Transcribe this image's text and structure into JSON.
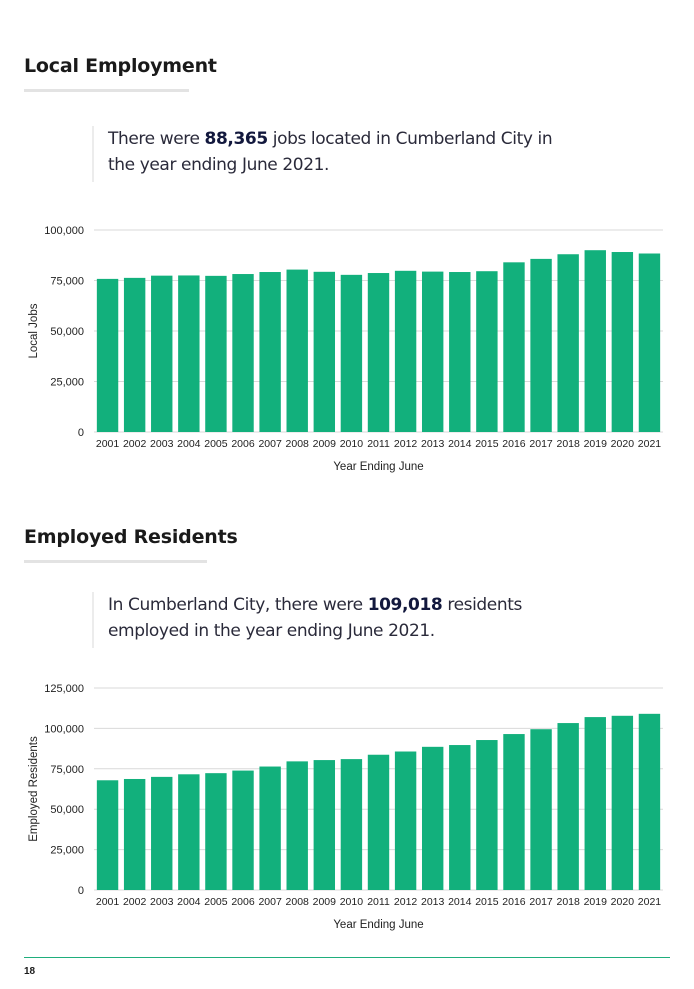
{
  "sections": [
    {
      "title": "Local Employment",
      "callout": {
        "before": "There were ",
        "highlight": "88,365",
        "after_line1": " jobs located in Cumberland City in",
        "line2": "the year ending June 2021."
      }
    },
    {
      "title": "Employed Residents",
      "callout": {
        "before": "In Cumberland City, there were ",
        "highlight": "109,018",
        "after_line1": " residents",
        "line2": "employed in the year ending June 2021."
      }
    }
  ],
  "page_number": "18",
  "colors": {
    "bar": "#12b07c",
    "grid": "#d9d9d9",
    "footer_rule": "#1fae7c"
  },
  "chart_data": [
    {
      "type": "bar",
      "title": "",
      "xlabel": "Year Ending June",
      "ylabel": "Local Jobs",
      "ylim": [
        0,
        100000
      ],
      "yticks": [
        0,
        25000,
        50000,
        75000,
        100000
      ],
      "ytick_labels": [
        "0",
        "25,000",
        "50,000",
        "75,000",
        "100,000"
      ],
      "grid": true,
      "categories": [
        "2001",
        "2002",
        "2003",
        "2004",
        "2005",
        "2006",
        "2007",
        "2008",
        "2009",
        "2010",
        "2011",
        "2012",
        "2013",
        "2014",
        "2015",
        "2016",
        "2017",
        "2018",
        "2019",
        "2020",
        "2021"
      ],
      "values": [
        75800,
        76300,
        77400,
        77500,
        77300,
        78200,
        79200,
        80400,
        79300,
        77800,
        78700,
        79800,
        79400,
        79200,
        79600,
        84000,
        85700,
        88000,
        90000,
        89100,
        88365
      ]
    },
    {
      "type": "bar",
      "title": "",
      "xlabel": "Year Ending June",
      "ylabel": "Employed Residents",
      "ylim": [
        0,
        125000
      ],
      "yticks": [
        0,
        25000,
        50000,
        75000,
        100000,
        125000
      ],
      "ytick_labels": [
        "0",
        "25,000",
        "50,000",
        "75,000",
        "100,000",
        "125,000"
      ],
      "grid": true,
      "categories": [
        "2001",
        "2002",
        "2003",
        "2004",
        "2005",
        "2006",
        "2007",
        "2008",
        "2009",
        "2010",
        "2011",
        "2012",
        "2013",
        "2014",
        "2015",
        "2016",
        "2017",
        "2018",
        "2019",
        "2020",
        "2021"
      ],
      "values": [
        67900,
        68700,
        70000,
        71600,
        72300,
        73900,
        76400,
        79600,
        80400,
        81000,
        83700,
        85700,
        88600,
        89700,
        92800,
        96500,
        99500,
        103300,
        107000,
        107800,
        109018
      ]
    }
  ]
}
